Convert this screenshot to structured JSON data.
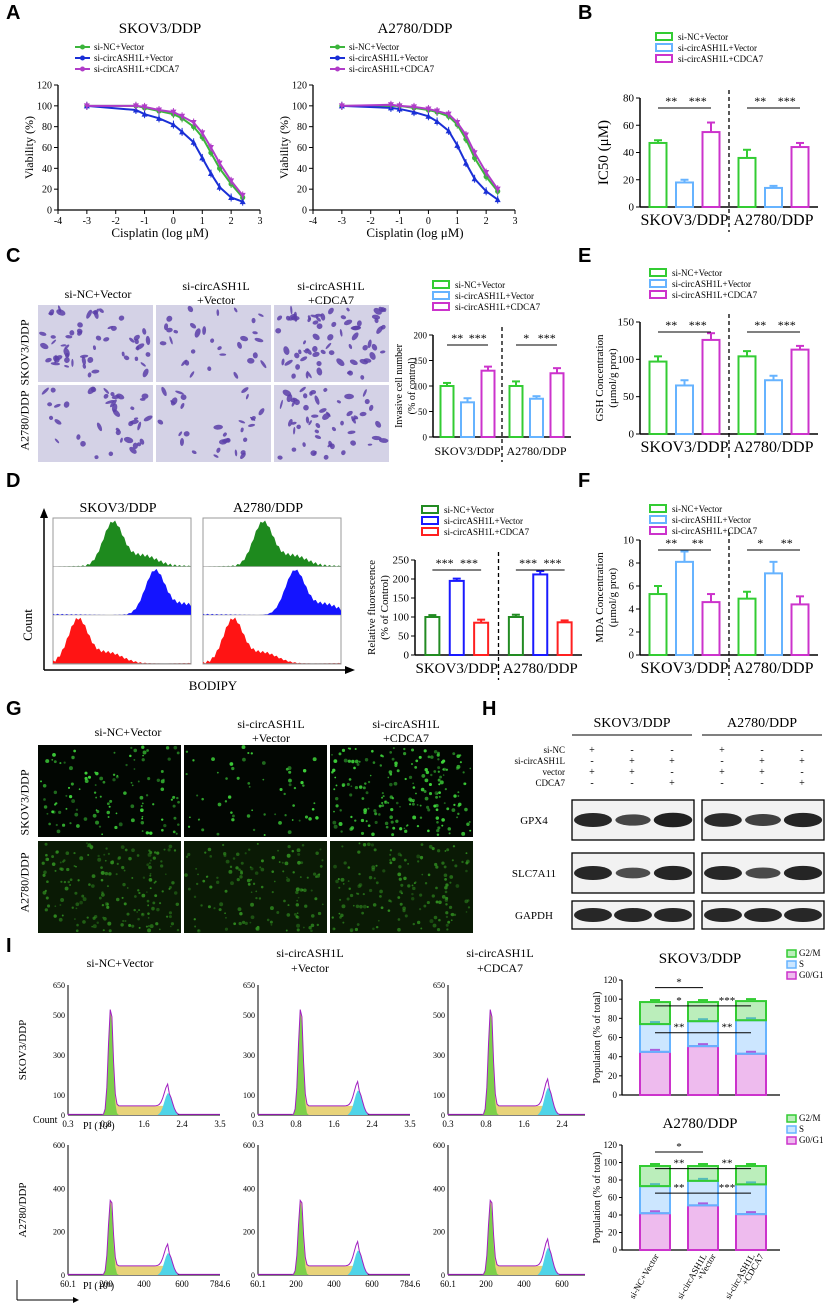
{
  "panel_labels": [
    "A",
    "B",
    "C",
    "D",
    "E",
    "F",
    "G",
    "H",
    "I"
  ],
  "colors": {
    "nc_green": "#3cb53c",
    "ash_blue": "#1a2fd6",
    "cdca_purple": "#b03cc8",
    "bar_green": "#33cc33",
    "bar_blue": "#66b3ff",
    "bar_purple": "#cc33cc",
    "g0g1": "#cc33cc",
    "s_phase": "#66b3ff",
    "g2m": "#33cc33"
  },
  "conditions": {
    "nc": "si-NC+Vector",
    "ash": "si-circASH1L+Vector",
    "cdca": "si-circASH1L+CDCA7",
    "ash_line1": "si-circASH1L",
    "ash_line2": "+Vector",
    "cdca_line1": "si-circASH1L",
    "cdca_line2": "+CDCA7"
  },
  "cells": {
    "skov": "SKOV3/DDP",
    "a2780": "A2780/DDP"
  },
  "micro_rows": {
    "skov": "SKOV3/DDP",
    "a2780": "A2780/DDP"
  },
  "blot": {
    "row_labels": [
      "si-NC",
      "si-circASH1L",
      "vector",
      "CDCA7"
    ],
    "signs": [
      [
        "+",
        "-",
        "-"
      ],
      [
        "-",
        "+",
        "+"
      ],
      [
        "+",
        "+",
        "-"
      ],
      [
        "-",
        "-",
        "+"
      ]
    ],
    "proteins": [
      "GPX4",
      "SLC7A11",
      "GAPDH"
    ]
  },
  "chart_data": [
    {
      "id": "A_skov",
      "type": "line",
      "title": "SKOV3/DDP",
      "xlabel": "Cisplatin (log μM)",
      "ylabel": "Viability (%)",
      "xlim": [
        -4,
        3
      ],
      "ylim": [
        0,
        120
      ],
      "xticks": [
        -4,
        -3,
        -2,
        -1,
        0,
        1,
        2,
        3
      ],
      "yticks": [
        0,
        20,
        40,
        60,
        80,
        100,
        120
      ],
      "x": [
        -3,
        -1.3,
        -1,
        -0.5,
        0,
        0.3,
        0.7,
        1,
        1.3,
        1.6,
        2,
        2.4
      ],
      "series": [
        {
          "name": "si-NC+Vector",
          "values": [
            100,
            100,
            98,
            95,
            92,
            88,
            80,
            70,
            55,
            40,
            25,
            12
          ]
        },
        {
          "name": "si-circASH1L+Vector",
          "values": [
            100,
            96,
            92,
            88,
            82,
            75,
            65,
            50,
            35,
            22,
            12,
            8
          ]
        },
        {
          "name": "si-circASH1L+CDCA7",
          "values": [
            100,
            100,
            99,
            96,
            94,
            90,
            84,
            74,
            60,
            45,
            28,
            14
          ]
        }
      ]
    },
    {
      "id": "A_a2780",
      "type": "line",
      "title": "A2780/DDP",
      "xlabel": "Cisplatin (log μM)",
      "ylabel": "Viability (%)",
      "xlim": [
        -4,
        3
      ],
      "ylim": [
        0,
        120
      ],
      "xticks": [
        -4,
        -3,
        -2,
        -1,
        0,
        1,
        2,
        3
      ],
      "yticks": [
        0,
        20,
        40,
        60,
        80,
        100,
        120
      ],
      "x": [
        -3,
        -1.3,
        -1,
        -0.5,
        0,
        0.3,
        0.7,
        1,
        1.3,
        1.6,
        2,
        2.4
      ],
      "series": [
        {
          "name": "si-NC+Vector",
          "values": [
            100,
            100,
            100,
            98,
            96,
            94,
            90,
            82,
            68,
            50,
            32,
            18
          ]
        },
        {
          "name": "si-circASH1L+Vector",
          "values": [
            100,
            98,
            97,
            94,
            90,
            85,
            76,
            62,
            45,
            30,
            18,
            10
          ]
        },
        {
          "name": "si-circASH1L+CDCA7",
          "values": [
            100,
            101,
            100,
            99,
            97,
            95,
            92,
            84,
            72,
            55,
            36,
            20
          ]
        }
      ]
    },
    {
      "id": "B",
      "type": "bar",
      "ylabel": "IC50 (μM)",
      "ylim": [
        0,
        80
      ],
      "yticks": [
        0,
        20,
        40,
        60,
        80
      ],
      "categories": [
        "SKOV3/DDP",
        "A2780/DDP"
      ],
      "series": [
        {
          "name": "si-NC+Vector",
          "values": [
            47,
            36
          ],
          "errors": [
            2,
            6
          ]
        },
        {
          "name": "si-circASH1L+Vector",
          "values": [
            18,
            14
          ],
          "errors": [
            2,
            1.5
          ]
        },
        {
          "name": "si-circASH1L+CDCA7",
          "values": [
            55,
            44
          ],
          "errors": [
            7,
            3
          ]
        }
      ],
      "significance": [
        [
          "**",
          "***"
        ],
        [
          "**",
          "***"
        ]
      ]
    },
    {
      "id": "C",
      "type": "bar",
      "ylabel": "Invasive cell number (% of control)",
      "ylim": [
        0,
        200
      ],
      "yticks": [
        0,
        50,
        100,
        150,
        200
      ],
      "categories": [
        "SKOV3/DDP",
        "A2780/DDP"
      ],
      "series": [
        {
          "name": "si-NC+Vector",
          "values": [
            100,
            100
          ],
          "errors": [
            6,
            9
          ]
        },
        {
          "name": "si-circASH1L+Vector",
          "values": [
            68,
            75
          ],
          "errors": [
            8,
            5
          ]
        },
        {
          "name": "si-circASH1L+CDCA7",
          "values": [
            130,
            125
          ],
          "errors": [
            8,
            10
          ]
        }
      ],
      "significance": [
        [
          "**",
          "***"
        ],
        [
          "*",
          "***"
        ]
      ]
    },
    {
      "id": "E",
      "type": "bar",
      "ylabel": "GSH Concentration (μmol/g prot)",
      "ylim": [
        0,
        150
      ],
      "yticks": [
        0,
        50,
        100,
        150
      ],
      "categories": [
        "SKOV3/DDP",
        "A2780/DDP"
      ],
      "series": [
        {
          "name": "si-NC+Vector",
          "values": [
            97,
            104
          ],
          "errors": [
            7,
            7
          ]
        },
        {
          "name": "si-circASH1L+Vector",
          "values": [
            65,
            72
          ],
          "errors": [
            7,
            6
          ]
        },
        {
          "name": "si-circASH1L+CDCA7",
          "values": [
            126,
            113
          ],
          "errors": [
            9,
            5
          ]
        }
      ],
      "significance": [
        [
          "**",
          "***"
        ],
        [
          "**",
          "***"
        ]
      ]
    },
    {
      "id": "D_flow",
      "type": "area",
      "xlabel": "BODIPY",
      "ylabel": "Count",
      "titles": [
        "SKOV3/DDP",
        "A2780/DDP"
      ],
      "series": [
        {
          "name": "si-NC+Vector",
          "color": "#1e8a1e"
        },
        {
          "name": "si-circASH1L+Vector",
          "color": "#1414ff"
        },
        {
          "name": "si-circASH1L+CDCA7",
          "color": "#ff1414"
        }
      ]
    },
    {
      "id": "D",
      "type": "bar",
      "ylabel": "Relative fluorescence (% of Control)",
      "ylim": [
        0,
        250
      ],
      "yticks": [
        0,
        50,
        100,
        150,
        200,
        250
      ],
      "categories": [
        "SKOV3/DDP",
        "A2780/DDP"
      ],
      "series": [
        {
          "name": "si-NC+Vector",
          "values": [
            100,
            100
          ],
          "errors": [
            5,
            6
          ]
        },
        {
          "name": "si-circASH1L+Vector",
          "values": [
            195,
            212
          ],
          "errors": [
            6,
            9
          ]
        },
        {
          "name": "si-circASH1L+CDCA7",
          "values": [
            85,
            86
          ],
          "errors": [
            8,
            5
          ]
        }
      ],
      "significance": [
        [
          "***",
          "***"
        ],
        [
          "***",
          "***"
        ]
      ]
    },
    {
      "id": "F",
      "type": "bar",
      "ylabel": "MDA Concentration (μmol/g prot)",
      "ylim": [
        0,
        10
      ],
      "yticks": [
        0,
        2,
        4,
        6,
        8,
        10
      ],
      "categories": [
        "SKOV3/DDP",
        "A2780/DDP"
      ],
      "series": [
        {
          "name": "si-NC+Vector",
          "values": [
            5.3,
            4.9
          ],
          "errors": [
            0.7,
            0.6
          ]
        },
        {
          "name": "si-circASH1L+Vector",
          "values": [
            8.1,
            7.1
          ],
          "errors": [
            0.9,
            1.0
          ]
        },
        {
          "name": "si-circASH1L+CDCA7",
          "values": [
            4.6,
            4.4
          ],
          "errors": [
            0.7,
            0.7
          ]
        }
      ],
      "significance": [
        [
          "**",
          "**"
        ],
        [
          "*",
          "**"
        ]
      ]
    },
    {
      "id": "I_cycle",
      "type": "area",
      "rows": [
        "SKOV3/DDP",
        "A2780/DDP"
      ],
      "ylabel": "Count",
      "xlabels": [
        "PI (10⁶)",
        "PI (10³)"
      ],
      "xticks": [
        [
          "0.3",
          "0.8",
          "1.6",
          "2.4",
          "3.5"
        ],
        [
          "60.1",
          "200",
          "400",
          "600",
          "784.6"
        ]
      ],
      "yticks": [
        [
          "0",
          "100",
          "300",
          "500",
          "650"
        ],
        [
          "0",
          "200",
          "400",
          "600"
        ]
      ]
    },
    {
      "id": "I_skov",
      "type": "bar",
      "stacked": true,
      "title": "SKOV3/DDP",
      "ylabel": "Population (% of total)",
      "ylim": [
        0,
        120
      ],
      "yticks": [
        0,
        20,
        40,
        60,
        80,
        100,
        120
      ],
      "categories": [
        "si-NC+Vector",
        "si-circASH1L +Vector",
        "si-circASH1L +CDCA7"
      ],
      "series": [
        {
          "name": "G0/G1",
          "values": [
            45,
            51,
            43
          ]
        },
        {
          "name": "S",
          "values": [
            29,
            26,
            35
          ]
        },
        {
          "name": "G2/M",
          "values": [
            23,
            20,
            20
          ]
        }
      ],
      "significance": [
        "*",
        "*",
        "***",
        "**",
        "**"
      ]
    },
    {
      "id": "I_a2780",
      "type": "bar",
      "stacked": true,
      "title": "A2780/DDP",
      "ylabel": "Population (% of total)",
      "ylim": [
        0,
        120
      ],
      "yticks": [
        0,
        20,
        40,
        60,
        80,
        100,
        120
      ],
      "categories": [
        "si-NC+Vector",
        "si-circASH1L +Vector",
        "si-circASH1L +CDCA7"
      ],
      "series": [
        {
          "name": "G0/G1",
          "values": [
            42,
            51,
            41
          ]
        },
        {
          "name": "S",
          "values": [
            31,
            28,
            34
          ]
        },
        {
          "name": "G2/M",
          "values": [
            23,
            17,
            21
          ]
        }
      ],
      "significance": [
        "*",
        "**",
        "**",
        "**",
        "***"
      ]
    }
  ]
}
